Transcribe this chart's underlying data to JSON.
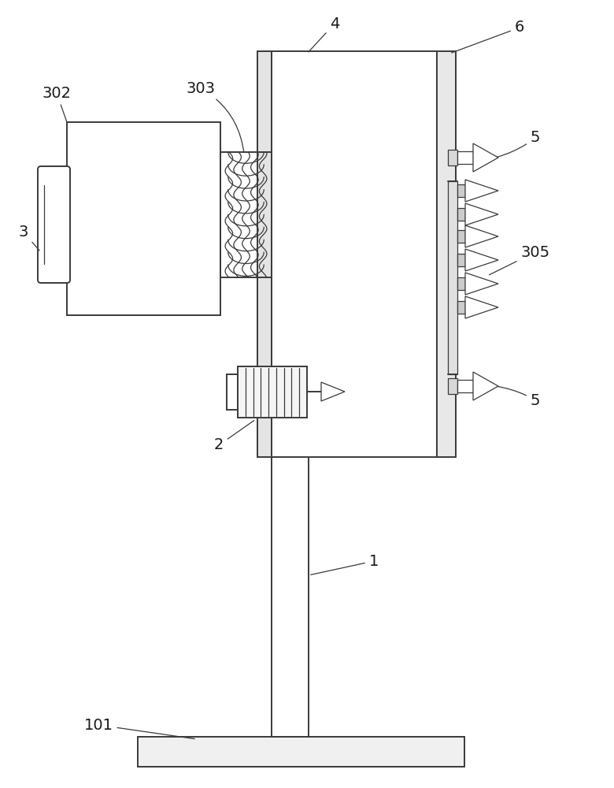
{
  "bg_color": "#ffffff",
  "line_color": "#3a3a3a",
  "line_width": 1.4,
  "thin_line": 0.9,
  "fig_w": 7.8,
  "fig_h": 10.0,
  "dpi": 100
}
